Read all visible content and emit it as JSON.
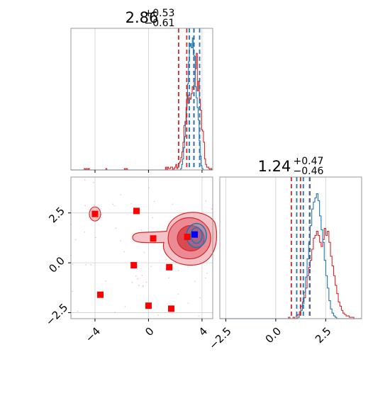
{
  "chart_data": {
    "type": "corner",
    "params": [
      {
        "median": 2.86,
        "plus": 0.53,
        "minus": 0.61,
        "title_main": "2.86",
        "title_sup": "+0.53",
        "title_sub": "−0.61"
      },
      {
        "median": 1.24,
        "plus": 0.47,
        "minus": 0.46,
        "title_main": "1.24",
        "title_sup": "+0.47",
        "title_sub": "−0.46"
      }
    ],
    "x_ticks": [
      {
        "value": -4,
        "label": "−4"
      },
      {
        "value": 0,
        "label": "0"
      },
      {
        "value": 4,
        "label": "4"
      }
    ],
    "y_ticks": [
      {
        "value": -2.5,
        "label": "−2.5"
      },
      {
        "value": 0.0,
        "label": "0.0"
      },
      {
        "value": 2.5,
        "label": "2.5"
      }
    ],
    "x2_ticks": [
      {
        "value": -2.5,
        "label": "−2.5"
      },
      {
        "value": 0.0,
        "label": "0.0"
      },
      {
        "value": 2.5,
        "label": "2.5"
      }
    ],
    "ranges": {
      "p0": [
        -5.8,
        4.8
      ],
      "p1": [
        -2.8,
        4.3
      ],
      "hist_top_ymax": 1.0,
      "hist_bottom_ymax": 1.0
    },
    "grid": true,
    "series": [
      {
        "color": "#d62728",
        "quantile_lines_p0": [
          2.25,
          2.86,
          3.39
        ],
        "quantile_lines_p1": [
          0.78,
          1.24,
          1.71
        ]
      },
      {
        "color": "#1f77b4",
        "quantile_lines_p0": [
          3.05,
          3.4,
          3.82
        ],
        "quantile_lines_p1": [
          1.05,
          1.38,
          1.69
        ]
      }
    ],
    "hist_p0": {
      "bin_edges": [
        -5.8,
        4.8
      ],
      "red": [
        0,
        0,
        0,
        0,
        0,
        0,
        0,
        0,
        0,
        0,
        0,
        0,
        0,
        0.01,
        0,
        0.01,
        0,
        0.01,
        0,
        0,
        0,
        0,
        0,
        0,
        0,
        0,
        0,
        0,
        0,
        0,
        0,
        0,
        0,
        0,
        0.01,
        0,
        0,
        0,
        0,
        0,
        0,
        0,
        0,
        0,
        0,
        0,
        0,
        0,
        0,
        0,
        0,
        0,
        0.01,
        0,
        0.01,
        0,
        0,
        0,
        0,
        0,
        0,
        0,
        0,
        0,
        0,
        0,
        0,
        0,
        0,
        0,
        0,
        0,
        0,
        0,
        0,
        0,
        0,
        0,
        0,
        0,
        0,
        0,
        0,
        0,
        0,
        0,
        0,
        0,
        0,
        0,
        0,
        0,
        0.02,
        0,
        0.02,
        0.01,
        0.01,
        0.02,
        0.02,
        0,
        0.01,
        0.02,
        0.04,
        0.01,
        0.02,
        0.05,
        0.06,
        0.09,
        0.13,
        0.2,
        0.32,
        0.35,
        0.45,
        0.54,
        0.48,
        0.52,
        0.51,
        0.55,
        0.6,
        0.58,
        0.66,
        0.73,
        0.84,
        0.57,
        0.64,
        0.51,
        0.43,
        0.29,
        0.28,
        0.2,
        0.08,
        0.04,
        0.02,
        0.02,
        0.01,
        0,
        0.01,
        0
      ],
      "blue": [
        0,
        0,
        0,
        0,
        0,
        0,
        0,
        0,
        0,
        0,
        0,
        0,
        0,
        0,
        0,
        0,
        0,
        0,
        0,
        0,
        0,
        0,
        0,
        0,
        0,
        0,
        0,
        0,
        0,
        0,
        0,
        0,
        0,
        0,
        0,
        0,
        0,
        0,
        0,
        0,
        0,
        0,
        0,
        0,
        0,
        0,
        0,
        0,
        0,
        0,
        0,
        0,
        0,
        0,
        0,
        0,
        0,
        0,
        0,
        0,
        0,
        0,
        0,
        0,
        0,
        0,
        0,
        0,
        0,
        0,
        0,
        0,
        0,
        0,
        0,
        0,
        0,
        0,
        0,
        0,
        0,
        0,
        0,
        0,
        0,
        0,
        0,
        0,
        0,
        0,
        0,
        0,
        0,
        0,
        0,
        0,
        0,
        0,
        0,
        0,
        0,
        0,
        0,
        0,
        0,
        0,
        0,
        0,
        0,
        0,
        0,
        0,
        0,
        0.01,
        0.04,
        0.08,
        0.16,
        0.24,
        0.35,
        0.51,
        0.62,
        0.78,
        0.89,
        0.91,
        0.88,
        0.95,
        0.83,
        0.82,
        0.6,
        0.52,
        0.45,
        0.36,
        0.21,
        0.1,
        0.03,
        0.01,
        0,
        0,
        0,
        0,
        0,
        0,
        0,
        0,
        0,
        0
      ]
    },
    "hist_p1": {
      "bin_edges": [
        -2.8,
        4.3
      ],
      "red": [
        0,
        0,
        0,
        0,
        0,
        0,
        0,
        0,
        0,
        0,
        0,
        0,
        0,
        0,
        0,
        0,
        0,
        0,
        0,
        0,
        0,
        0,
        0,
        0,
        0,
        0,
        0,
        0,
        0,
        0,
        0,
        0,
        0,
        0,
        0,
        0,
        0,
        0,
        0,
        0,
        0,
        0,
        0,
        0,
        0.01,
        0,
        0,
        0.01,
        0,
        0.02,
        0.03,
        0.05,
        0.09,
        0.12,
        0.15,
        0.22,
        0.31,
        0.37,
        0.42,
        0.5,
        0.58,
        0.6,
        0.63,
        0.6,
        0.55,
        0.52,
        0.57,
        0.65,
        0.6,
        0.63,
        0.55,
        0.45,
        0.38,
        0.31,
        0.24,
        0.18,
        0.12,
        0.09,
        0.06,
        0.04,
        0.03,
        0.02,
        0.02,
        0.01,
        0.01,
        0.01,
        0,
        0,
        0,
        0,
        0
      ],
      "blue": [
        0,
        0,
        0,
        0,
        0,
        0,
        0,
        0,
        0,
        0,
        0,
        0,
        0,
        0,
        0,
        0,
        0,
        0,
        0,
        0,
        0,
        0,
        0,
        0,
        0,
        0,
        0,
        0,
        0,
        0,
        0,
        0,
        0,
        0,
        0,
        0,
        0,
        0,
        0,
        0,
        0,
        0,
        0,
        0,
        0,
        0,
        0,
        0,
        0,
        0,
        0.01,
        0.03,
        0.06,
        0.11,
        0.19,
        0.3,
        0.43,
        0.55,
        0.67,
        0.79,
        0.84,
        0.87,
        0.9,
        0.85,
        0.74,
        0.64,
        0.55,
        0.42,
        0.31,
        0.22,
        0.13,
        0.07,
        0.04,
        0.02,
        0.01,
        0,
        0,
        0,
        0,
        0,
        0,
        0,
        0,
        0,
        0,
        0,
        0,
        0,
        0,
        0,
        0
      ]
    },
    "scatter_red": [
      {
        "x": -4.0,
        "y": 2.45
      },
      {
        "x": -0.9,
        "y": 2.6
      },
      {
        "x": 0.35,
        "y": 1.22
      },
      {
        "x": -1.1,
        "y": -0.12
      },
      {
        "x": 1.55,
        "y": -0.22
      },
      {
        "x": -3.6,
        "y": -1.6
      },
      {
        "x": 0.0,
        "y": -2.15
      },
      {
        "x": 1.7,
        "y": -2.3
      },
      {
        "x": 2.9,
        "y": 1.3
      }
    ],
    "scatter_blue": [
      {
        "x": 3.45,
        "y": 1.42
      }
    ],
    "contour_center": {
      "x": 2.95,
      "y": 1.3
    }
  }
}
